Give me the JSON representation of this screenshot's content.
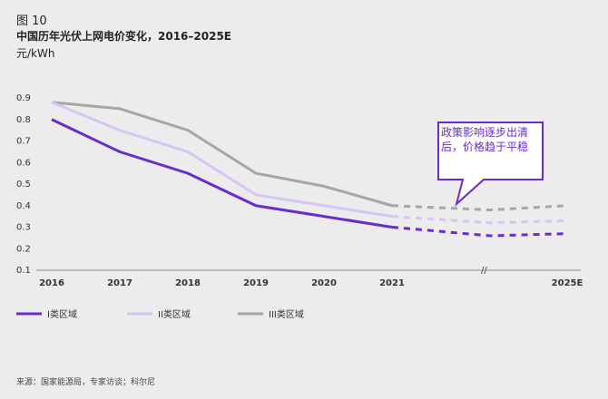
{
  "header": {
    "figure": "图 10",
    "title": "中国历年光伏上网电价变化，2016–2025E"
  },
  "chart_data": {
    "type": "line",
    "ylabel": "元/kWh",
    "categories": [
      "2016",
      "2017",
      "2018",
      "2019",
      "2020",
      "2021",
      null,
      "2025E"
    ],
    "forecast_start": 5,
    "series": [
      {
        "name": "I类区域",
        "color": "#6a2bd0",
        "values": [
          0.8,
          0.65,
          0.55,
          0.4,
          0.35,
          0.3,
          0.26,
          0.27
        ]
      },
      {
        "name": "II类区域",
        "color": "#d8c5f4",
        "values": [
          0.88,
          0.75,
          0.65,
          0.45,
          0.4,
          0.35,
          0.32,
          0.33
        ]
      },
      {
        "name": "III类区域",
        "color": "#a6a6a6",
        "values": [
          0.88,
          0.85,
          0.75,
          0.55,
          0.49,
          0.4,
          0.38,
          0.4
        ]
      }
    ],
    "ylim": [
      0.1,
      0.9
    ],
    "yticks": [
      0.1,
      0.2,
      0.3,
      0.4,
      0.5,
      0.6,
      0.7,
      0.8,
      0.9
    ],
    "annotation": "政策影响逐步出清后，价格趋于平稳"
  },
  "source": "来源：国家能源局，专家访谈；科尔尼"
}
